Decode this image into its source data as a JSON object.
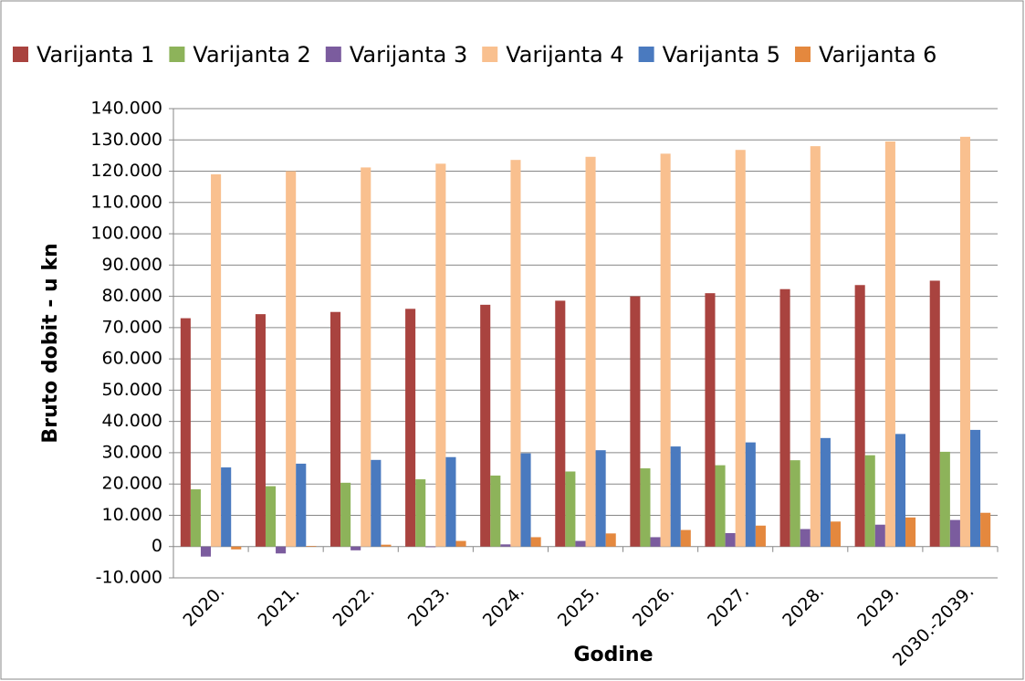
{
  "chart_data": {
    "type": "bar",
    "x_label": "Godine",
    "y_label": "Bruto dobit  - u kn",
    "categories": [
      "2020.",
      "2021.",
      "2022.",
      "2023.",
      "2024.",
      "2025.",
      "2026.",
      "2027.",
      "2028.",
      "2029.",
      "2030.-2039."
    ],
    "series": [
      {
        "name": "Varijanta 1",
        "color": "#a9433f",
        "values": [
          73000,
          74300,
          75000,
          76000,
          77300,
          78600,
          80000,
          81000,
          82300,
          83600,
          85000
        ]
      },
      {
        "name": "Varijanta 2",
        "color": "#8db35a",
        "values": [
          18300,
          19300,
          20400,
          21500,
          22700,
          24000,
          25000,
          26000,
          27600,
          29200,
          30300
        ]
      },
      {
        "name": "Varijanta 3",
        "color": "#7b5c9e",
        "values": [
          -3200,
          -2200,
          -1200,
          -200,
          700,
          1800,
          3000,
          4300,
          5600,
          7000,
          8500
        ]
      },
      {
        "name": "Varijanta 4",
        "color": "#f9c08f",
        "values": [
          119000,
          120000,
          121200,
          122400,
          123600,
          124600,
          125600,
          126800,
          128000,
          129500,
          131000
        ]
      },
      {
        "name": "Varijanta 5",
        "color": "#4a7abf",
        "values": [
          25300,
          26500,
          27700,
          28600,
          29800,
          30800,
          32000,
          33300,
          34700,
          36000,
          37300
        ]
      },
      {
        "name": "Varijanta 6",
        "color": "#e4883e",
        "values": [
          -900,
          200,
          600,
          1800,
          3000,
          4200,
          5300,
          6700,
          8000,
          9300,
          10800
        ]
      }
    ],
    "ylim": [
      -10000,
      140000
    ],
    "yticks": [
      {
        "value": -10000,
        "label": "-10.000"
      },
      0,
      {
        "value": 10000,
        "label": "10.000"
      },
      {
        "value": 20000,
        "label": "20.000"
      },
      {
        "value": 30000,
        "label": "30.000"
      },
      {
        "value": 40000,
        "label": "40.000"
      },
      {
        "value": 50000,
        "label": "50.000"
      },
      {
        "value": 60000,
        "label": "60.000"
      },
      {
        "value": 70000,
        "label": "70.000"
      },
      {
        "value": 80000,
        "label": "80.000"
      },
      {
        "value": 90000,
        "label": "90.000"
      },
      {
        "value": 100000,
        "label": "100.000"
      },
      {
        "value": 110000,
        "label": "110.000"
      },
      {
        "value": 120000,
        "label": "120.000"
      },
      {
        "value": 130000,
        "label": "130.000"
      },
      {
        "value": 140000,
        "label": "140.000"
      }
    ],
    "grid": true,
    "legend": "top"
  }
}
